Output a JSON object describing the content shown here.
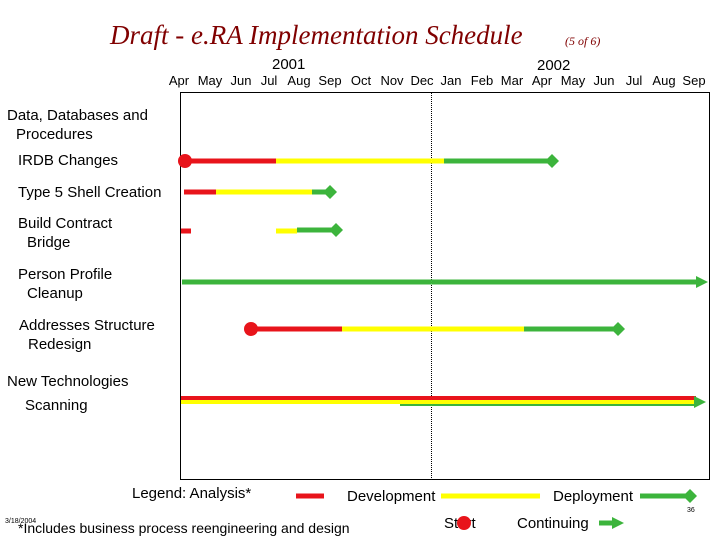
{
  "slide": {
    "title": "Draft - e.RA Implementation Schedule",
    "subtitle": "(5 of 6)",
    "page_number": "36",
    "date_stamp": "3/18/2004",
    "footnote": "*Includes business process reengineering and design"
  },
  "timeline": {
    "years": [
      "2001",
      "2002"
    ],
    "months": [
      "Apr",
      "May",
      "Jun",
      "Jul",
      "Aug",
      "Sep",
      "Oct",
      "Nov",
      "Dec",
      "Jan",
      "Feb",
      "Mar",
      "Apr",
      "May",
      "Jun",
      "Jul",
      "Aug",
      "Sep"
    ]
  },
  "groups": [
    {
      "label": "Data, Databases and",
      "label2": "Procedures"
    },
    {
      "label": "New Technologies",
      "label2": "Scanning"
    }
  ],
  "tasks": [
    {
      "label": "IRDB Changes",
      "label2": ""
    },
    {
      "label": "Type 5 Shell Creation",
      "label2": ""
    },
    {
      "label": "Build Contract",
      "label2": "Bridge"
    },
    {
      "label": "Person Profile",
      "label2": "Cleanup"
    },
    {
      "label": "Addresses Structure",
      "label2": "Redesign"
    }
  ],
  "legend": {
    "analysis": "Legend:  Analysis*",
    "development": "Development",
    "deployment": "Deployment",
    "start": "Start",
    "continuing": "Continuing"
  },
  "colors": {
    "analysis": "#e8141b",
    "development": "#ffff00",
    "deployment": "#3cb43c",
    "title": "#800000"
  }
}
